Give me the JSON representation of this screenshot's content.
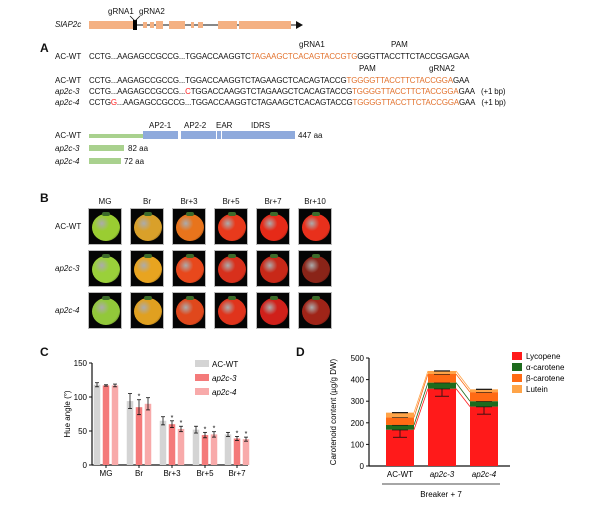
{
  "panel_a": {
    "label": "A",
    "gene_name": "SlAP2c",
    "grna1_marker": "gRNA1",
    "grna2_marker": "gRNA2",
    "seq_labels": {
      "grna1": "gRNA1",
      "pam1": "PAM",
      "pam2": "PAM",
      "grna2": "gRNA2"
    },
    "sequences": [
      {
        "name": "AC-WT",
        "italic": false,
        "segments": [
          {
            "text": "CCTG...AAGAGCCGCCG...TGGACCAAGGTC",
            "color": "#111111"
          },
          {
            "text": "TAGAAGCTCACAGTACCGTG",
            "color": "#e2712c"
          },
          {
            "text": "GGGTTACCTTCTACCGGAGAA",
            "color": "#111111"
          }
        ],
        "note": ""
      },
      {
        "name": "AC-WT",
        "italic": false,
        "segments": [
          {
            "text": "CCTG...AAGAGCCGCCG...TGGACCAAGGTCTAGAAGCTCACAGTACCG",
            "color": "#111111"
          },
          {
            "text": "TGGGGTTACCTTCTACCGGA",
            "color": "#e2712c"
          },
          {
            "text": "GAA",
            "color": "#111111"
          }
        ],
        "note": ""
      },
      {
        "name": "ap2c-3",
        "italic": true,
        "segments": [
          {
            "text": "CCTG...AAGAGCCGCCG...",
            "color": "#111111"
          },
          {
            "text": "C",
            "color": "#ff2020"
          },
          {
            "text": "TGGACCAAGGTCTAGAAGCTCACAGTACCG",
            "color": "#111111"
          },
          {
            "text": "TGGGGTTACCTTCTACCGGA",
            "color": "#e2712c"
          },
          {
            "text": "GAA",
            "color": "#111111"
          }
        ],
        "note": "(+1 bp)"
      },
      {
        "name": "ap2c-4",
        "italic": true,
        "segments": [
          {
            "text": "CCTG",
            "color": "#111111"
          },
          {
            "text": "G",
            "color": "#ff2020"
          },
          {
            "text": "...AAGAGCCGCCG...TGGACCAAGGTCTAGAAGCTCACAGTACCG",
            "color": "#111111"
          },
          {
            "text": "TGGGGTTACCTTCTACCGGA",
            "color": "#e2712c"
          },
          {
            "text": "GAA",
            "color": "#111111"
          }
        ],
        "note": "(+1 bp)"
      }
    ],
    "protein": {
      "domains": [
        "AP2-1",
        "AP2-2",
        "EAR",
        "IDRS"
      ],
      "rows": [
        {
          "name": "AC-WT",
          "length": "447 aa"
        },
        {
          "name": "ap2c-3",
          "length": "82 aa"
        },
        {
          "name": "ap2c-4",
          "length": "72 aa"
        }
      ],
      "colors": {
        "nterm": "#a9d18e",
        "domain": "#8faadc"
      }
    }
  },
  "panel_b": {
    "label": "B",
    "columns": [
      "MG",
      "Br",
      "Br+3",
      "Br+5",
      "Br+7",
      "Br+10"
    ],
    "rows": [
      {
        "name": "AC-WT",
        "italic": false,
        "colors": [
          "#9acd32",
          "#d9a02a",
          "#e8741c",
          "#e83a1c",
          "#e62a18",
          "#e8301c"
        ]
      },
      {
        "name": "ap2c-3",
        "italic": true,
        "colors": [
          "#9ad03a",
          "#e8a420",
          "#e8481c",
          "#d8301c",
          "#c82818",
          "#8a2418"
        ]
      },
      {
        "name": "ap2c-4",
        "italic": true,
        "colors": [
          "#92c83a",
          "#e0a020",
          "#e0481c",
          "#e0341c",
          "#d0201a",
          "#a02418"
        ]
      }
    ]
  },
  "chart_data": [
    {
      "panel": "C",
      "type": "bar",
      "title": "",
      "xlabel": "",
      "ylabel": "Hue angle (°)",
      "ylim": [
        0,
        150
      ],
      "yticks": [
        "0",
        "50",
        "100",
        "150"
      ],
      "categories": [
        "MG",
        "Br",
        "Br+3",
        "Br+5",
        "Br+7"
      ],
      "legend_position": "top-right",
      "series": [
        {
          "name": "AC-WT",
          "color": "#d4d4d4",
          "values": [
            118,
            94,
            65,
            52,
            45
          ],
          "err": [
            3,
            11,
            6,
            5,
            3
          ],
          "sig": [
            false,
            false,
            false,
            false,
            false
          ]
        },
        {
          "name": "ap2c-3",
          "color": "#f47a7a",
          "values": [
            117,
            85,
            60,
            44,
            39
          ],
          "err": [
            1,
            11,
            5,
            4,
            3
          ],
          "sig": [
            false,
            true,
            true,
            true,
            true
          ]
        },
        {
          "name": "ap2c-4",
          "color": "#f8aaaa",
          "values": [
            117,
            90,
            53,
            45,
            38
          ],
          "err": [
            2,
            9,
            4,
            4,
            3
          ],
          "sig": [
            false,
            false,
            true,
            true,
            true
          ]
        }
      ],
      "sig_mark": "*"
    },
    {
      "panel": "D",
      "type": "bar",
      "stacked": true,
      "title": "",
      "xlabel": "Breaker + 7",
      "ylabel": "Carotenoid content (µg/g DW)",
      "ylim": [
        0,
        500
      ],
      "yticks": [
        "0",
        "100",
        "200",
        "300",
        "400",
        "500"
      ],
      "categories": [
        "AC-WT",
        "ap2c-3",
        "ap2c-4"
      ],
      "legend_position": "top-right",
      "series": [
        {
          "name": "Lycopene",
          "color": "#ff1a1a",
          "values": [
            168,
            358,
            275
          ]
        },
        {
          "name": "α-carotene",
          "color": "#1d6b1d",
          "values": [
            22,
            28,
            25
          ]
        },
        {
          "name": "β-carotene",
          "color": "#ff6a14",
          "values": [
            35,
            40,
            42
          ]
        },
        {
          "name": "Lutein",
          "color": "#ffa448",
          "values": [
            22,
            14,
            13
          ]
        }
      ]
    }
  ]
}
